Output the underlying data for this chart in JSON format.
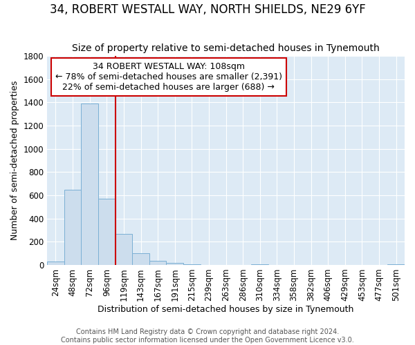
{
  "title": "34, ROBERT WESTALL WAY, NORTH SHIELDS, NE29 6YF",
  "subtitle": "Size of property relative to semi-detached houses in Tynemouth",
  "xlabel": "Distribution of semi-detached houses by size in Tynemouth",
  "ylabel": "Number of semi-detached properties",
  "bar_labels": [
    "24sqm",
    "48sqm",
    "72sqm",
    "96sqm",
    "119sqm",
    "143sqm",
    "167sqm",
    "191sqm",
    "215sqm",
    "239sqm",
    "263sqm",
    "286sqm",
    "310sqm",
    "334sqm",
    "358sqm",
    "382sqm",
    "406sqm",
    "429sqm",
    "453sqm",
    "477sqm",
    "501sqm"
  ],
  "bar_values": [
    30,
    645,
    1390,
    570,
    270,
    100,
    35,
    15,
    5,
    0,
    0,
    0,
    5,
    0,
    0,
    0,
    0,
    0,
    0,
    0,
    5
  ],
  "bar_color": "#ccdded",
  "bar_edge_color": "#7aafd4",
  "property_label": "34 ROBERT WESTALL WAY: 108sqm",
  "annotation_line1": "← 78% of semi-detached houses are smaller (2,391)",
  "annotation_line2": "22% of semi-detached houses are larger (688) →",
  "vline_color": "#cc0000",
  "vline_x_index": 3.5,
  "annotation_box_facecolor": "#ffffff",
  "annotation_box_edge": "#cc0000",
  "ylim": [
    0,
    1800
  ],
  "yticks": [
    0,
    200,
    400,
    600,
    800,
    1000,
    1200,
    1400,
    1600,
    1800
  ],
  "footer1": "Contains HM Land Registry data © Crown copyright and database right 2024.",
  "footer2": "Contains public sector information licensed under the Open Government Licence v3.0.",
  "fig_background_color": "#ffffff",
  "plot_bg_color": "#ddeaf5",
  "grid_color": "#ffffff",
  "title_fontsize": 12,
  "subtitle_fontsize": 10,
  "axis_label_fontsize": 9,
  "tick_fontsize": 8.5,
  "annotation_fontsize": 9,
  "footer_fontsize": 7
}
